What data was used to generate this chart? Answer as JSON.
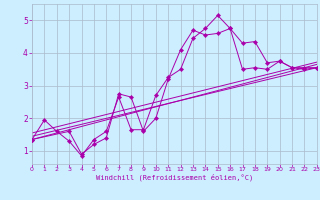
{
  "title": "",
  "xlabel": "Windchill (Refroidissement éolien,°C)",
  "bg_color": "#cceeff",
  "grid_color": "#aabbcc",
  "line_color": "#aa00aa",
  "xmin": 0,
  "xmax": 23,
  "ymin": 0.6,
  "ymax": 5.5,
  "yticks": [
    1,
    2,
    3,
    4,
    5
  ],
  "xticks": [
    0,
    1,
    2,
    3,
    4,
    5,
    6,
    7,
    8,
    9,
    10,
    11,
    12,
    13,
    14,
    15,
    16,
    17,
    18,
    19,
    20,
    21,
    22,
    23
  ],
  "series1_x": [
    0,
    1,
    2,
    3,
    4,
    5,
    6,
    7,
    8,
    9,
    10,
    11,
    12,
    13,
    14,
    15,
    16,
    17,
    18,
    19,
    20,
    21,
    22,
    23
  ],
  "series1_y": [
    1.35,
    1.95,
    1.6,
    1.3,
    0.85,
    1.35,
    1.6,
    2.65,
    1.65,
    1.65,
    2.7,
    3.25,
    3.5,
    4.45,
    4.75,
    5.15,
    4.75,
    4.3,
    4.35,
    3.7,
    3.75,
    3.55,
    3.5,
    3.55
  ],
  "series2_x": [
    0,
    3,
    4,
    5,
    6,
    7,
    8,
    9,
    10,
    11,
    12,
    13,
    14,
    15,
    16,
    17,
    18,
    19,
    20,
    21,
    22,
    23
  ],
  "series2_y": [
    1.35,
    1.6,
    0.9,
    1.2,
    1.4,
    2.75,
    2.65,
    1.6,
    2.0,
    3.2,
    4.1,
    4.7,
    4.55,
    4.6,
    4.75,
    3.5,
    3.55,
    3.5,
    3.75,
    3.55,
    3.55,
    3.55
  ],
  "line1_x": [
    0,
    23
  ],
  "line1_y": [
    1.35,
    3.65
  ],
  "line2_x": [
    0,
    23
  ],
  "line2_y": [
    1.45,
    3.55
  ],
  "line3_x": [
    0,
    23
  ],
  "line3_y": [
    1.55,
    3.72
  ]
}
